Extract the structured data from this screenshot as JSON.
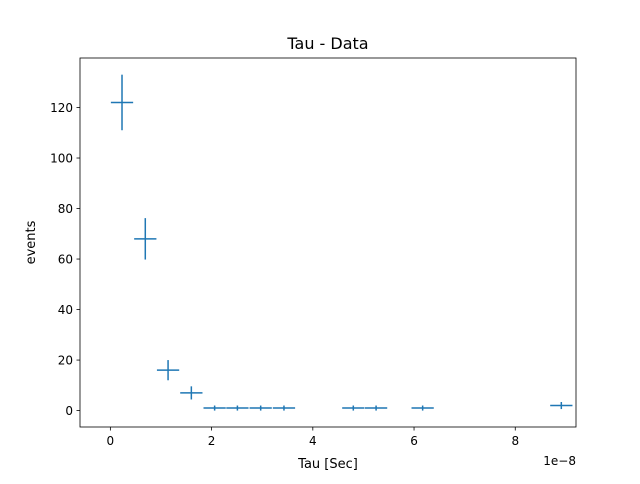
{
  "chart_data": {
    "type": "errorbar",
    "title": "Tau - Data",
    "xlabel": "Tau [Sec]",
    "ylabel": "events",
    "x_offset_text": "1e−8",
    "x_scale_factor": 1e-08,
    "xlim": [
      -6e-09,
      9.2e-08
    ],
    "ylim": [
      -6.5,
      139.6
    ],
    "x_ticks": [
      0,
      2e-08,
      4e-08,
      6e-08,
      8e-08
    ],
    "x_tick_labels": [
      "0",
      "2",
      "4",
      "6",
      "8"
    ],
    "y_ticks": [
      0,
      20,
      40,
      60,
      80,
      100,
      120
    ],
    "y_tick_labels": [
      "0",
      "20",
      "40",
      "60",
      "80",
      "100",
      "120"
    ],
    "grid": false,
    "color": "#1f77b4",
    "x_half_width": 2.2e-09,
    "series": [
      {
        "x": [
          2.3e-09,
          6.9e-09,
          1.14e-08,
          1.6e-08,
          2.06e-08,
          2.51e-08,
          2.97e-08,
          3.43e-08,
          4.8e-08,
          5.25e-08,
          6.17e-08,
          8.91e-08
        ],
        "y": [
          122,
          68,
          16,
          7,
          1,
          1,
          1,
          1,
          1,
          1,
          1,
          2
        ],
        "yerr": [
          11.0,
          8.2,
          4.0,
          2.6,
          1.0,
          1.0,
          1.0,
          1.0,
          1.0,
          1.0,
          1.0,
          1.4
        ]
      }
    ]
  }
}
